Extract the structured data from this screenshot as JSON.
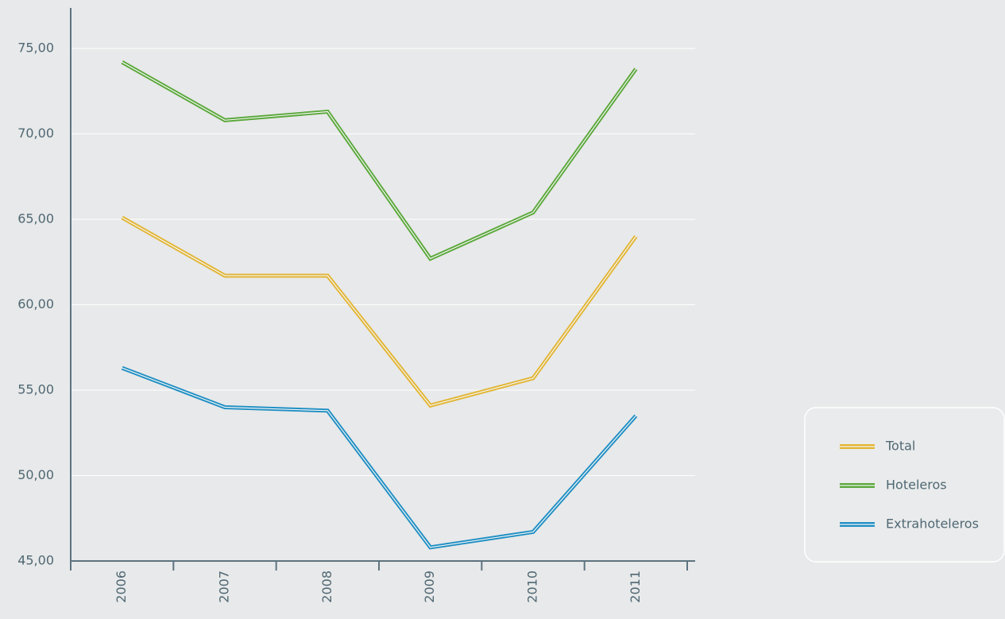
{
  "chart_data": {
    "type": "line",
    "categories": [
      "2006",
      "2007",
      "2008",
      "2009",
      "2010",
      "2011"
    ],
    "series": [
      {
        "name": "Total",
        "color": "#e2b534",
        "values": [
          65.1,
          61.7,
          61.7,
          54.1,
          55.7,
          64.0
        ]
      },
      {
        "name": "Hoteleros",
        "color": "#5aa83a",
        "values": [
          74.2,
          70.8,
          71.3,
          62.7,
          65.4,
          73.8
        ]
      },
      {
        "name": "Extrahoteleros",
        "color": "#1f8fc4",
        "values": [
          56.3,
          54.0,
          53.8,
          45.8,
          46.7,
          53.5
        ]
      }
    ],
    "ylim": [
      45,
      75
    ],
    "yticks": [
      {
        "value": 45,
        "label": "45,00"
      },
      {
        "value": 50,
        "label": "50,00"
      },
      {
        "value": 55,
        "label": "55,00"
      },
      {
        "value": 60,
        "label": "60,00"
      },
      {
        "value": 65,
        "label": "65,00"
      },
      {
        "value": 70,
        "label": "70,00"
      },
      {
        "value": 75,
        "label": "75,00"
      }
    ],
    "grid": true,
    "legend": "lower right"
  }
}
